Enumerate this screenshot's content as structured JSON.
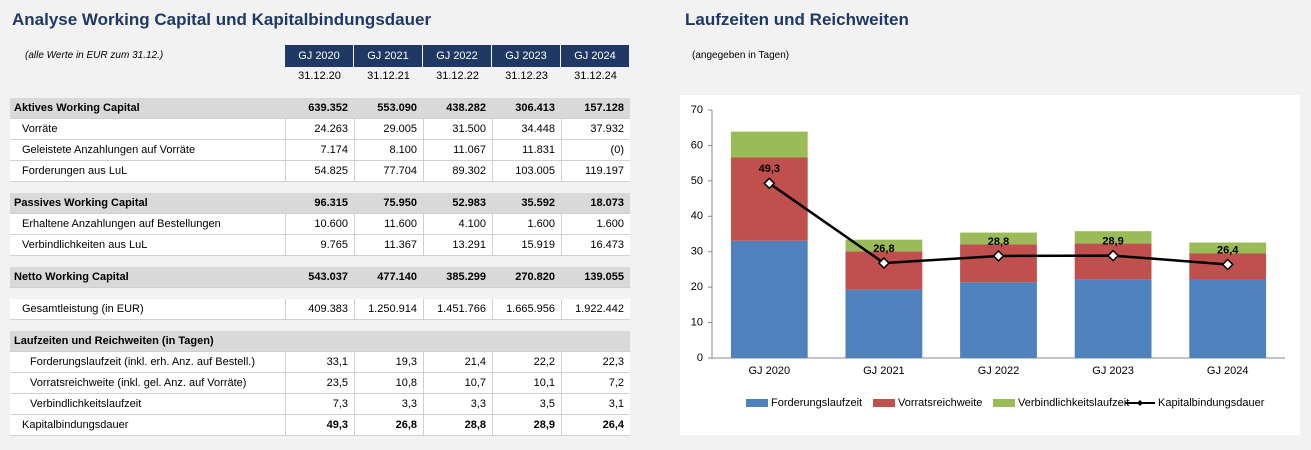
{
  "analysis": {
    "title": "Analyse Working Capital und Kapitalbindungsdauer",
    "note": "(alle Werte in EUR zum 31.12.)",
    "table": {
      "columns": [
        "GJ 2020",
        "GJ 2021",
        "GJ 2022",
        "GJ 2023",
        "GJ 2024"
      ],
      "dates": [
        "31.12.20",
        "31.12.21",
        "31.12.22",
        "31.12.23",
        "31.12.24"
      ],
      "sections": [
        {
          "header": {
            "label": "Aktives Working Capital",
            "values": [
              "639.352",
              "553.090",
              "438.282",
              "306.413",
              "157.128"
            ]
          },
          "rows": [
            {
              "label": "Vorräte",
              "values": [
                "24.263",
                "29.005",
                "31.500",
                "34.448",
                "37.932"
              ]
            },
            {
              "label": "Geleistete Anzahlungen auf Vorräte",
              "values": [
                "7.174",
                "8.100",
                "11.067",
                "11.831",
                "(0)"
              ]
            },
            {
              "label": "Forderungen aus LuL",
              "values": [
                "54.825",
                "77.704",
                "89.302",
                "103.005",
                "119.197"
              ]
            }
          ]
        },
        {
          "header": {
            "label": "Passives Working Capital",
            "values": [
              "96.315",
              "75.950",
              "52.983",
              "35.592",
              "18.073"
            ]
          },
          "rows": [
            {
              "label": "Erhaltene Anzahlungen auf Bestellungen",
              "values": [
                "10.600",
                "11.600",
                "4.100",
                "1.600",
                "1.600"
              ]
            },
            {
              "label": "Verbindlichkeiten aus LuL",
              "values": [
                "9.765",
                "11.367",
                "13.291",
                "15.919",
                "16.473"
              ]
            }
          ]
        },
        {
          "header": {
            "label": "Netto Working Capital",
            "values": [
              "543.037",
              "477.140",
              "385.299",
              "270.820",
              "139.055"
            ]
          },
          "rows": []
        },
        {
          "rows": [
            {
              "label": "Gesamtleistung (in EUR)",
              "values": [
                "409.383",
                "1.250.914",
                "1.451.766",
                "1.665.956",
                "1.922.442"
              ]
            }
          ]
        },
        {
          "header": {
            "label": "Laufzeiten und Reichweiten (in Tagen)",
            "values": []
          },
          "rows": [
            {
              "label": "Forderungslaufzeit (inkl. erh. Anz. auf Bestell.)",
              "values": [
                "33,1",
                "19,3",
                "21,4",
                "22,2",
                "22,3"
              ]
            },
            {
              "label": "Vorratsreichweite (inkl. gel. Anz. auf Vorräte)",
              "values": [
                "23,5",
                "10,8",
                "10,7",
                "10,1",
                "7,2"
              ]
            },
            {
              "label": "Verbindlichkeitslaufzeit",
              "values": [
                "7,3",
                "3,3",
                "3,3",
                "3,5",
                "3,1"
              ]
            },
            {
              "label": "Kapitalbindungsdauer",
              "values": [
                "49,3",
                "26,8",
                "28,8",
                "28,9",
                "26,4"
              ]
            }
          ]
        }
      ]
    }
  },
  "chart_data": {
    "type": "bar",
    "stacked": true,
    "title": "Laufzeiten und Reichweiten",
    "subtitle": "(angegeben in Tagen)",
    "categories": [
      "GJ 2020",
      "GJ 2021",
      "GJ 2022",
      "GJ 2023",
      "GJ 2024"
    ],
    "series": [
      {
        "name": "Forderungslaufzeit",
        "color": "#4f81bd",
        "values": [
          33.1,
          19.3,
          21.4,
          22.2,
          22.3
        ]
      },
      {
        "name": "Vorratsreichweite",
        "color": "#c0504d",
        "values": [
          23.5,
          10.8,
          10.7,
          10.1,
          7.2
        ]
      },
      {
        "name": "Verbindlichkeitslaufzeit",
        "color": "#9bbb59",
        "values": [
          7.3,
          3.3,
          3.3,
          3.5,
          3.1
        ]
      },
      {
        "name": "Kapitalbindungsdauer",
        "type": "line",
        "color": "#000000",
        "values": [
          49.3,
          26.8,
          28.8,
          28.9,
          26.4
        ],
        "value_labels": [
          "49,3",
          "26,8",
          "28,8",
          "28,9",
          "26,4"
        ]
      }
    ],
    "ylim": [
      0,
      70
    ],
    "yticks": [
      0,
      10,
      20,
      30,
      40,
      50,
      60,
      70
    ],
    "grid": false,
    "legend": "bottom"
  }
}
